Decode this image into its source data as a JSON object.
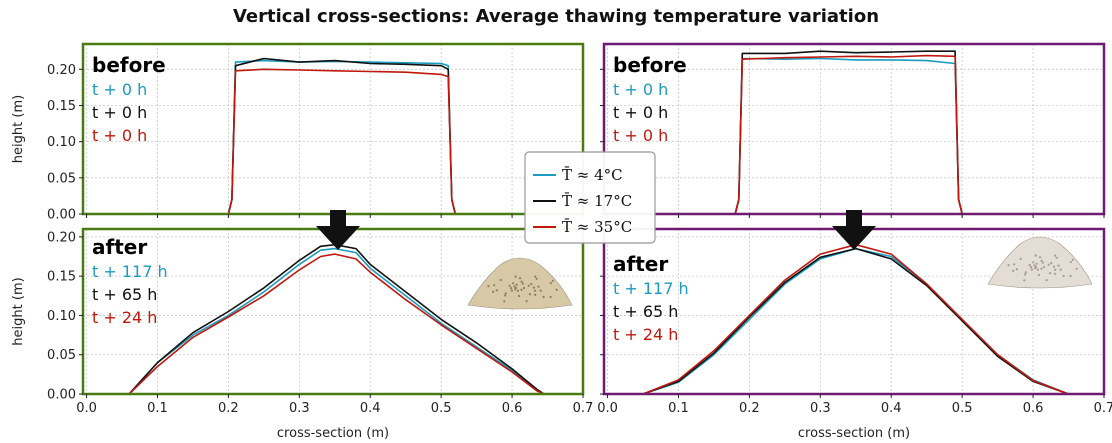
{
  "title": "Vertical cross-sections: Average thawing temperature variation",
  "colors": {
    "cold": "#1b9bbf",
    "mid": "#111111",
    "warm": "#c0180d",
    "frame_left": "#4a7a12",
    "frame_right": "#6f1b72"
  },
  "legend": [
    "T̄ ≈ 4°C",
    "T̄ ≈ 17°C",
    "T̄ ≈ 35°C"
  ],
  "panel_labels": {
    "before": "before",
    "after": "after"
  },
  "times_before": [
    "t + 0 h",
    "t + 0 h",
    "t + 0 h"
  ],
  "times_after": [
    "t + 117 h",
    "t + 65 h",
    "t + 24 h"
  ],
  "xlabel": "cross-section (m)",
  "ylabel": "height (m)",
  "chart_data": [
    {
      "type": "line",
      "panel": "left-before",
      "xlim": [
        -0.005,
        0.7
      ],
      "ylim": [
        0,
        0.235
      ],
      "grid": true,
      "xticks": [
        "0.0",
        "0.1",
        "0.2",
        "0.3",
        "0.4",
        "0.5",
        "0.6",
        "0.7"
      ],
      "yticks": [
        "0.00",
        "0.05",
        "0.10",
        "0.15",
        "0.20"
      ],
      "series": [
        {
          "name": "T̄ ≈ 4°C",
          "x": [
            0.0,
            0.2,
            0.205,
            0.21,
            0.25,
            0.3,
            0.35,
            0.4,
            0.45,
            0.5,
            0.51,
            0.515,
            0.52,
            0.7
          ],
          "y": [
            0,
            0,
            0.02,
            0.21,
            0.212,
            0.21,
            0.211,
            0.21,
            0.209,
            0.208,
            0.205,
            0.02,
            0,
            0
          ]
        },
        {
          "name": "T̄ ≈ 17°C",
          "x": [
            0.0,
            0.2,
            0.205,
            0.21,
            0.25,
            0.3,
            0.35,
            0.4,
            0.45,
            0.5,
            0.51,
            0.515,
            0.52,
            0.7
          ],
          "y": [
            0,
            0,
            0.02,
            0.205,
            0.215,
            0.21,
            0.212,
            0.208,
            0.207,
            0.205,
            0.2,
            0.02,
            0,
            0
          ]
        },
        {
          "name": "T̄ ≈ 35°C",
          "x": [
            0.0,
            0.2,
            0.205,
            0.21,
            0.25,
            0.3,
            0.35,
            0.4,
            0.45,
            0.5,
            0.51,
            0.515,
            0.52,
            0.7
          ],
          "y": [
            0,
            0,
            0.02,
            0.198,
            0.2,
            0.199,
            0.198,
            0.197,
            0.196,
            0.193,
            0.19,
            0.02,
            0,
            0
          ]
        }
      ]
    },
    {
      "type": "line",
      "panel": "right-before",
      "xlim": [
        -0.005,
        0.7
      ],
      "ylim": [
        0,
        0.235
      ],
      "grid": true,
      "xticks": [
        "0.0",
        "0.1",
        "0.2",
        "0.3",
        "0.4",
        "0.5",
        "0.6",
        "0.7"
      ],
      "yticks": [
        "0.00",
        "0.05",
        "0.10",
        "0.15",
        "0.20"
      ],
      "series": [
        {
          "name": "T̄ ≈ 4°C",
          "x": [
            0.0,
            0.18,
            0.185,
            0.19,
            0.25,
            0.3,
            0.35,
            0.4,
            0.45,
            0.49,
            0.495,
            0.5,
            0.7
          ],
          "y": [
            0,
            0,
            0.02,
            0.215,
            0.214,
            0.215,
            0.213,
            0.213,
            0.212,
            0.208,
            0.02,
            0,
            0
          ]
        },
        {
          "name": "T̄ ≈ 17°C",
          "x": [
            0.0,
            0.18,
            0.185,
            0.19,
            0.25,
            0.3,
            0.35,
            0.4,
            0.45,
            0.49,
            0.495,
            0.5,
            0.7
          ],
          "y": [
            0,
            0,
            0.02,
            0.222,
            0.222,
            0.225,
            0.223,
            0.224,
            0.225,
            0.225,
            0.02,
            0,
            0
          ]
        },
        {
          "name": "T̄ ≈ 35°C",
          "x": [
            0.0,
            0.18,
            0.185,
            0.19,
            0.25,
            0.3,
            0.35,
            0.4,
            0.45,
            0.49,
            0.495,
            0.5,
            0.7
          ],
          "y": [
            0,
            0,
            0.02,
            0.214,
            0.216,
            0.217,
            0.218,
            0.217,
            0.219,
            0.218,
            0.02,
            0,
            0
          ]
        }
      ]
    },
    {
      "type": "line",
      "panel": "left-after",
      "xlim": [
        -0.005,
        0.7
      ],
      "ylim": [
        0,
        0.21
      ],
      "grid": true,
      "xticks": [
        "0.0",
        "0.1",
        "0.2",
        "0.3",
        "0.4",
        "0.5",
        "0.6",
        "0.7"
      ],
      "yticks": [
        "0.00",
        "0.05",
        "0.10",
        "0.15",
        "0.20"
      ],
      "series": [
        {
          "name": "T̄ ≈ 4°C",
          "x": [
            0.06,
            0.1,
            0.15,
            0.2,
            0.25,
            0.3,
            0.33,
            0.35,
            0.38,
            0.4,
            0.45,
            0.5,
            0.55,
            0.6,
            0.635,
            0.645
          ],
          "y": [
            0,
            0.04,
            0.075,
            0.1,
            0.13,
            0.165,
            0.183,
            0.185,
            0.18,
            0.16,
            0.125,
            0.09,
            0.06,
            0.03,
            0.005,
            0
          ]
        },
        {
          "name": "T̄ ≈ 17°C",
          "x": [
            0.06,
            0.1,
            0.15,
            0.2,
            0.25,
            0.3,
            0.33,
            0.35,
            0.38,
            0.4,
            0.45,
            0.5,
            0.55,
            0.6,
            0.635,
            0.645
          ],
          "y": [
            0,
            0.04,
            0.078,
            0.105,
            0.135,
            0.17,
            0.188,
            0.19,
            0.185,
            0.165,
            0.13,
            0.095,
            0.065,
            0.032,
            0.006,
            0
          ]
        },
        {
          "name": "T̄ ≈ 35°C",
          "x": [
            0.06,
            0.1,
            0.15,
            0.2,
            0.25,
            0.3,
            0.33,
            0.35,
            0.38,
            0.4,
            0.45,
            0.5,
            0.55,
            0.6,
            0.635,
            0.645
          ],
          "y": [
            0,
            0.035,
            0.072,
            0.098,
            0.125,
            0.158,
            0.175,
            0.178,
            0.172,
            0.155,
            0.12,
            0.088,
            0.058,
            0.028,
            0.004,
            0
          ]
        }
      ]
    },
    {
      "type": "line",
      "panel": "right-after",
      "xlim": [
        -0.005,
        0.7
      ],
      "ylim": [
        0,
        0.21
      ],
      "grid": true,
      "xticks": [
        "0.0",
        "0.1",
        "0.2",
        "0.3",
        "0.4",
        "0.5",
        "0.6",
        "0.7"
      ],
      "yticks": [
        "0.00",
        "0.05",
        "0.10",
        "0.15",
        "0.20"
      ],
      "series": [
        {
          "name": "T̄ ≈ 4°C",
          "x": [
            0.05,
            0.1,
            0.15,
            0.2,
            0.25,
            0.3,
            0.35,
            0.4,
            0.45,
            0.5,
            0.55,
            0.6,
            0.65
          ],
          "y": [
            0,
            0.015,
            0.05,
            0.095,
            0.14,
            0.172,
            0.185,
            0.175,
            0.14,
            0.095,
            0.05,
            0.018,
            0
          ]
        },
        {
          "name": "T̄ ≈ 17°C",
          "x": [
            0.05,
            0.1,
            0.15,
            0.2,
            0.25,
            0.3,
            0.35,
            0.4,
            0.45,
            0.5,
            0.55,
            0.6,
            0.65
          ],
          "y": [
            0,
            0.016,
            0.052,
            0.098,
            0.142,
            0.174,
            0.185,
            0.172,
            0.138,
            0.093,
            0.048,
            0.016,
            0
          ]
        },
        {
          "name": "T̄ ≈ 35°C",
          "x": [
            0.05,
            0.1,
            0.15,
            0.2,
            0.25,
            0.3,
            0.35,
            0.4,
            0.45,
            0.5,
            0.55,
            0.6,
            0.65
          ],
          "y": [
            0,
            0.018,
            0.055,
            0.1,
            0.145,
            0.178,
            0.19,
            0.178,
            0.14,
            0.095,
            0.05,
            0.017,
            0
          ]
        }
      ]
    }
  ]
}
